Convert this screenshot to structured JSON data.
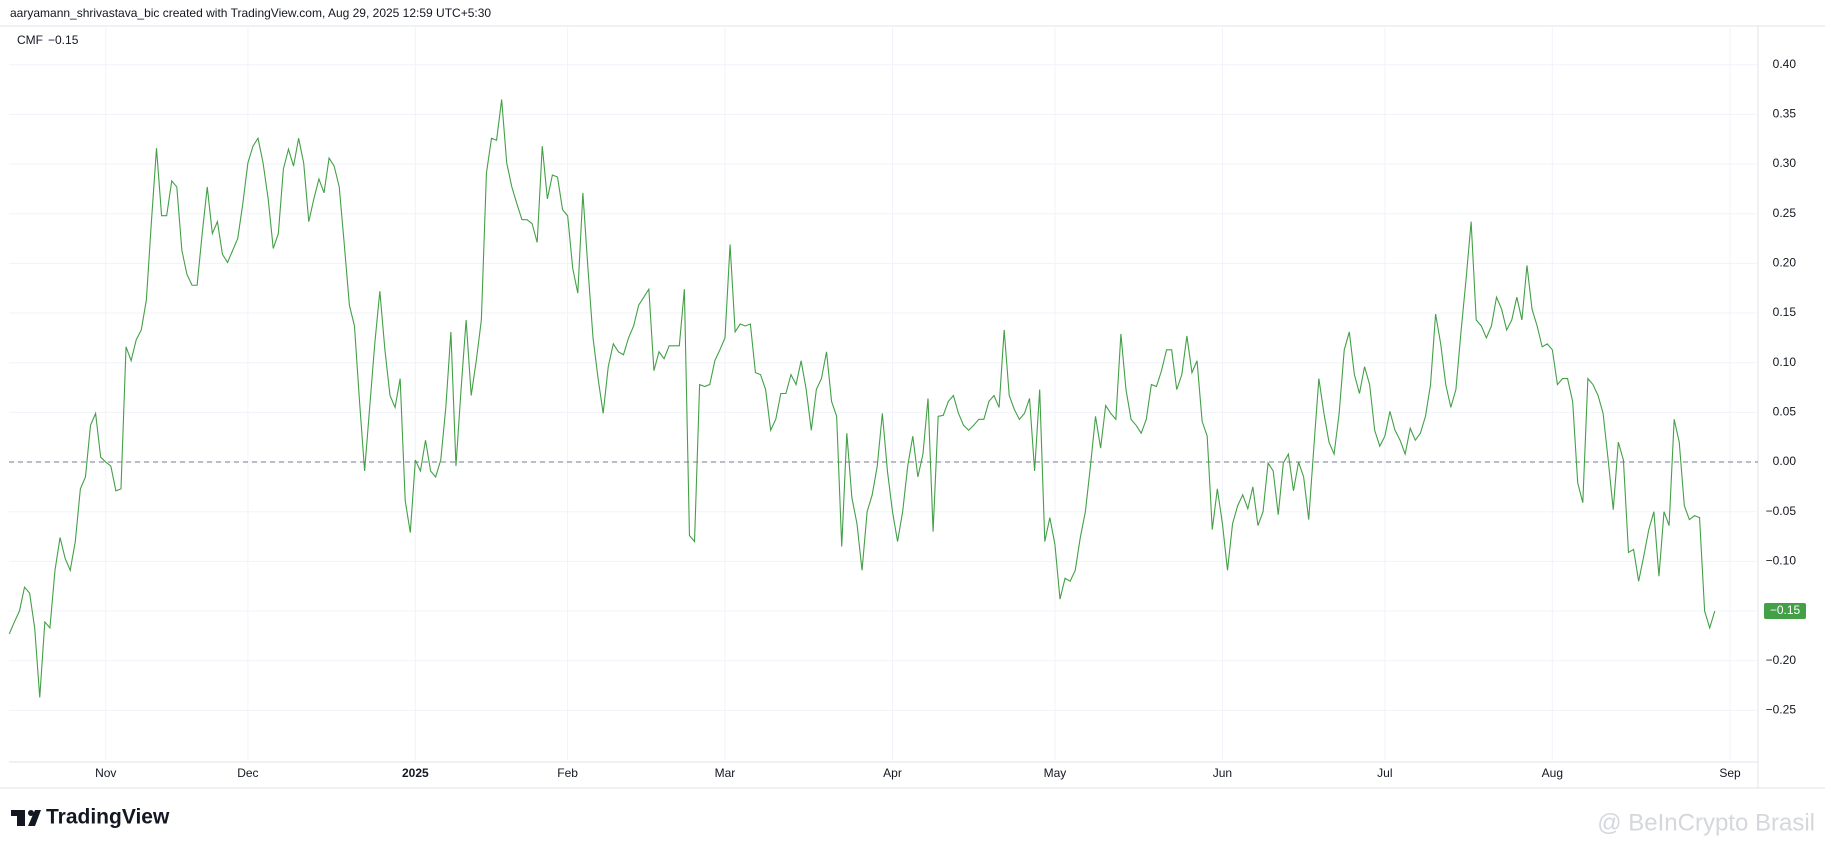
{
  "attribution": "aaryamann_shrivastava_bic created with TradingView.com, Aug 29, 2025 12:59 UTC+5:30",
  "logo": "TradingView",
  "watermark": "@ BeInCrypto Brasil",
  "chart_data": {
    "type": "line",
    "last_value_label": "−0.15",
    "ref_line": 0,
    "grid": true,
    "ylim": [
      -0.302,
      0.439
    ],
    "yticks": [
      {
        "value": 0.4,
        "label": "0.40"
      },
      {
        "value": 0.35,
        "label": "0.35"
      },
      {
        "value": 0.3,
        "label": "0.30"
      },
      {
        "value": 0.25,
        "label": "0.25"
      },
      {
        "value": 0.2,
        "label": "0.20"
      },
      {
        "value": 0.15,
        "label": "0.15"
      },
      {
        "value": 0.1,
        "label": "0.10"
      },
      {
        "value": 0.05,
        "label": "0.05"
      },
      {
        "value": 0,
        "label": "0.00"
      },
      {
        "value": -0.05,
        "label": "−0.05"
      },
      {
        "value": -0.1,
        "label": "−0.10"
      },
      {
        "value": -0.15,
        "label": "−0.15"
      },
      {
        "value": -0.2,
        "label": "−0.20"
      },
      {
        "value": -0.25,
        "label": "−0.25"
      }
    ],
    "categories": [
      null,
      null,
      null,
      null,
      null,
      null,
      null,
      null,
      null,
      null,
      null,
      null,
      null,
      null,
      null,
      null,
      null,
      null,
      null,
      "Nov",
      null,
      null,
      null,
      null,
      null,
      null,
      null,
      null,
      null,
      null,
      null,
      null,
      null,
      null,
      null,
      null,
      null,
      null,
      null,
      null,
      null,
      null,
      null,
      null,
      null,
      null,
      null,
      "Dec",
      null,
      null,
      null,
      null,
      null,
      null,
      null,
      null,
      null,
      null,
      null,
      null,
      null,
      null,
      null,
      null,
      null,
      null,
      null,
      null,
      null,
      null,
      null,
      null,
      null,
      null,
      null,
      null,
      null,
      null,
      null,
      null,
      "2025",
      null,
      null,
      null,
      null,
      null,
      null,
      null,
      null,
      null,
      null,
      null,
      null,
      null,
      null,
      null,
      null,
      null,
      null,
      null,
      null,
      null,
      null,
      null,
      null,
      null,
      null,
      null,
      null,
      null,
      "Feb",
      null,
      null,
      null,
      null,
      null,
      null,
      null,
      null,
      null,
      null,
      null,
      null,
      null,
      null,
      null,
      null,
      null,
      null,
      null,
      null,
      null,
      null,
      null,
      null,
      null,
      null,
      null,
      null,
      null,
      null,
      "Mar",
      null,
      null,
      null,
      null,
      null,
      null,
      null,
      null,
      null,
      null,
      null,
      null,
      null,
      null,
      null,
      null,
      null,
      null,
      null,
      null,
      null,
      null,
      null,
      null,
      null,
      null,
      null,
      null,
      null,
      null,
      null,
      null,
      "Apr",
      null,
      null,
      null,
      null,
      null,
      null,
      null,
      null,
      null,
      null,
      null,
      null,
      null,
      null,
      null,
      null,
      null,
      null,
      null,
      null,
      null,
      null,
      null,
      null,
      null,
      null,
      null,
      null,
      null,
      null,
      null,
      "May",
      null,
      null,
      null,
      null,
      null,
      null,
      null,
      null,
      null,
      null,
      null,
      null,
      null,
      null,
      null,
      null,
      null,
      null,
      null,
      null,
      null,
      null,
      null,
      null,
      null,
      null,
      null,
      null,
      null,
      null,
      null,
      null,
      "Jun",
      null,
      null,
      null,
      null,
      null,
      null,
      null,
      null,
      null,
      null,
      null,
      null,
      null,
      null,
      null,
      null,
      null,
      null,
      null,
      null,
      null,
      null,
      null,
      null,
      null,
      null,
      null,
      null,
      null,
      null,
      null,
      "Jul",
      null,
      null,
      null,
      null,
      null,
      null,
      null,
      null,
      null,
      null,
      null,
      null,
      null,
      null,
      null,
      null,
      null,
      null,
      null,
      null,
      null,
      null,
      null,
      null,
      null,
      null,
      null,
      null,
      null,
      null,
      null,
      null,
      "Aug",
      null,
      null,
      null,
      null,
      null,
      null,
      null,
      null,
      null,
      null,
      null,
      null,
      null,
      null,
      null,
      null,
      null,
      null,
      null,
      null,
      null,
      null,
      null,
      null,
      null,
      null,
      null,
      null,
      null,
      null,
      null,
      null,
      null,
      null,
      "Sep"
    ],
    "series": [
      {
        "name": "CMF",
        "color": "#43a047",
        "values": [
          -0.173,
          -0.161,
          -0.15,
          -0.126,
          -0.132,
          -0.167,
          -0.237,
          -0.161,
          -0.167,
          -0.109,
          -0.076,
          -0.097,
          -0.109,
          -0.08,
          -0.027,
          -0.015,
          0.037,
          0.049,
          0.005,
          0,
          -0.004,
          -0.029,
          -0.027,
          0.116,
          0.102,
          0.123,
          0.133,
          0.163,
          0.242,
          0.316,
          0.248,
          0.248,
          0.283,
          0.277,
          0.213,
          0.189,
          0.178,
          0.178,
          0.23,
          0.277,
          0.23,
          0.242,
          0.209,
          0.201,
          0.213,
          0.225,
          0.26,
          0.301,
          0.318,
          0.326,
          0.301,
          0.265,
          0.215,
          0.23,
          0.295,
          0.315,
          0.298,
          0.326,
          0.301,
          0.242,
          0.265,
          0.285,
          0.271,
          0.306,
          0.298,
          0.277,
          0.219,
          0.158,
          0.137,
          0.061,
          -0.009,
          0.055,
          0.119,
          0.172,
          0.113,
          0.067,
          0.055,
          0.084,
          -0.039,
          -0.071,
          0.002,
          -0.009,
          0.022,
          -0.009,
          -0.015,
          0.002,
          0.055,
          0.131,
          -0.004,
          0.073,
          0.143,
          0.067,
          0.102,
          0.143,
          0.291,
          0.326,
          0.324,
          0.365,
          0.301,
          0.277,
          0.26,
          0.244,
          0.244,
          0.24,
          0.221,
          0.318,
          0.265,
          0.289,
          0.287,
          0.254,
          0.248,
          0.195,
          0.17,
          0.271,
          0.195,
          0.125,
          0.084,
          0.049,
          0.096,
          0.119,
          0.111,
          0.108,
          0.125,
          0.137,
          0.158,
          0.166,
          0.174,
          0.092,
          0.111,
          0.104,
          0.117,
          0.117,
          0.117,
          0.174,
          -0.074,
          -0.08,
          0.078,
          0.076,
          0.078,
          0.102,
          0.113,
          0.125,
          0.219,
          0.131,
          0.139,
          0.137,
          0.139,
          0.09,
          0.088,
          0.073,
          0.032,
          0.043,
          0.069,
          0.069,
          0.088,
          0.078,
          0.102,
          0.073,
          0.032,
          0.073,
          0.084,
          0.111,
          0.061,
          0.046,
          -0.085,
          0.029,
          -0.036,
          -0.062,
          -0.109,
          -0.05,
          -0.033,
          -0.004,
          0.049,
          -0.009,
          -0.05,
          -0.08,
          -0.05,
          -0.004,
          0.026,
          -0.015,
          0.008,
          0.064,
          -0.07,
          0.046,
          0.047,
          0.061,
          0.067,
          0.049,
          0.037,
          0.032,
          0.037,
          0.043,
          0.043,
          0.061,
          0.067,
          0.055,
          0.133,
          0.067,
          0.053,
          0.043,
          0.049,
          0.064,
          -0.009,
          0.073,
          -0.08,
          -0.056,
          -0.083,
          -0.138,
          -0.117,
          -0.12,
          -0.109,
          -0.076,
          -0.05,
          -0.004,
          0.046,
          0.014,
          0.057,
          0.049,
          0.043,
          0.129,
          0.073,
          0.043,
          0.037,
          0.029,
          0.043,
          0.078,
          0.076,
          0.092,
          0.113,
          0.113,
          0.073,
          0.088,
          0.127,
          0.09,
          0.102,
          0.041,
          0.026,
          -0.068,
          -0.027,
          -0.062,
          -0.109,
          -0.062,
          -0.044,
          -0.033,
          -0.047,
          -0.025,
          -0.064,
          -0.05,
          -0.001,
          -0.009,
          -0.053,
          -0.001,
          0.008,
          -0.029,
          0,
          -0.015,
          -0.058,
          0.014,
          0.084,
          0.049,
          0.02,
          0.008,
          0.049,
          0.113,
          0.131,
          0.088,
          0.069,
          0.096,
          0.078,
          0.032,
          0.016,
          0.026,
          0.051,
          0.032,
          0.022,
          0.008,
          0.034,
          0.022,
          0.029,
          0.046,
          0.078,
          0.149,
          0.119,
          0.078,
          0.055,
          0.073,
          0.131,
          0.184,
          0.242,
          0.143,
          0.137,
          0.125,
          0.137,
          0.166,
          0.154,
          0.133,
          0.143,
          0.166,
          0.143,
          0.198,
          0.154,
          0.137,
          0.116,
          0.119,
          0.113,
          0.078,
          0.084,
          0.084,
          0.061,
          -0.021,
          -0.041,
          0.084,
          0.078,
          0.067,
          0.049,
          0.002,
          -0.048,
          0.02,
          0.002,
          -0.091,
          -0.088,
          -0.12,
          -0.095,
          -0.068,
          -0.05,
          -0.115,
          -0.05,
          -0.064,
          0.043,
          0.02,
          -0.044,
          -0.058,
          -0.054,
          -0.056,
          -0.15,
          -0.167,
          -0.15,
          null,
          null,
          null
        ]
      }
    ]
  }
}
